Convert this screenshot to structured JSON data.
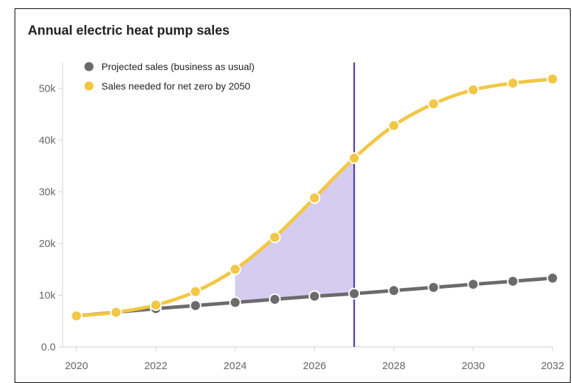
{
  "chart_data": {
    "type": "line",
    "title": "Annual electric heat pump sales",
    "x": [
      2020,
      2021,
      2022,
      2023,
      2024,
      2025,
      2026,
      2027,
      2028,
      2029,
      2030,
      2031,
      2032
    ],
    "series": [
      {
        "name": "Projected sales (business as usual)",
        "color": "#6b6b6b",
        "values": [
          6000,
          6700,
          7400,
          8000,
          8600,
          9200,
          9800,
          10300,
          10900,
          11500,
          12100,
          12700,
          13300
        ]
      },
      {
        "name": "Sales needed for net zero by 2050",
        "color": "#f2c744",
        "values": [
          6000,
          6700,
          8100,
          10700,
          15000,
          21200,
          28800,
          36500,
          42800,
          47000,
          49700,
          51000,
          51800
        ]
      }
    ],
    "x_ticks": [
      "2020",
      "2022",
      "2024",
      "2026",
      "2028",
      "2030",
      "2032"
    ],
    "y_ticks": [
      {
        "value": 0,
        "label": "0.0"
      },
      {
        "value": 10000,
        "label": "10k"
      },
      {
        "value": 20000,
        "label": "20k"
      },
      {
        "value": 30000,
        "label": "30k"
      },
      {
        "value": 40000,
        "label": "40k"
      },
      {
        "value": 50000,
        "label": "50k"
      }
    ],
    "xlim": [
      2020,
      2032
    ],
    "ylim": [
      0,
      55000
    ],
    "vertical_marker_x": 2027,
    "marker_color": "#3f1fa0",
    "shaded_region": {
      "x_start": 2024,
      "x_end": 2027,
      "color": "#d6ccf0"
    },
    "legend_position": "top-left",
    "grid": false
  }
}
